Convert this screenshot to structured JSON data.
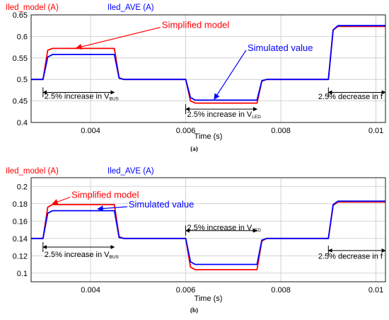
{
  "colors": {
    "model": "#ff0000",
    "average": "#0000ff",
    "annotation": "#000000"
  },
  "chart_data": [
    {
      "type": "line",
      "caption": "(a)",
      "legend": [
        "Iled_model (A)",
        "Iled_AVE (A)"
      ],
      "legend_placement": "top-left",
      "xlabel": "Time (s)",
      "ylabel": "",
      "xlim": [
        0.00275,
        0.0102
      ],
      "ylim": [
        0.4,
        0.65
      ],
      "xticks": [
        0.004,
        0.006,
        0.008,
        0.01
      ],
      "xtick_labels": [
        "0.004",
        "0.006",
        "0.008",
        "0.01"
      ],
      "yticks": [
        0.4,
        0.45,
        0.5,
        0.55,
        0.6,
        0.65
      ],
      "ytick_labels": [
        "0.4",
        "0.45",
        "0.5",
        "0.55",
        "0.6",
        "0.65"
      ],
      "grid": true,
      "series": [
        {
          "name": "Iled_model (A)",
          "x": [
            0.00275,
            0.003,
            0.0031,
            0.0032,
            0.0045,
            0.0046,
            0.0047,
            0.006,
            0.0061,
            0.0062,
            0.0075,
            0.0076,
            0.0077,
            0.009,
            0.0091,
            0.0092,
            0.0102
          ],
          "y": [
            0.5,
            0.5,
            0.568,
            0.572,
            0.572,
            0.504,
            0.5,
            0.5,
            0.45,
            0.445,
            0.445,
            0.496,
            0.5,
            0.5,
            0.615,
            0.623,
            0.623
          ]
        },
        {
          "name": "Iled_AVE (A)",
          "x": [
            0.00275,
            0.003,
            0.0031,
            0.0032,
            0.0045,
            0.0046,
            0.0047,
            0.006,
            0.0061,
            0.0062,
            0.0075,
            0.0076,
            0.0077,
            0.009,
            0.0091,
            0.0092,
            0.0102
          ],
          "y": [
            0.5,
            0.5,
            0.552,
            0.558,
            0.558,
            0.503,
            0.5,
            0.5,
            0.458,
            0.452,
            0.452,
            0.497,
            0.5,
            0.5,
            0.615,
            0.625,
            0.625
          ]
        }
      ],
      "annotations": [
        {
          "text": "Simplified model",
          "color": "#ff0000",
          "x": 0.0055,
          "y": 0.626,
          "arrow_to": [
            0.0037,
            0.573
          ]
        },
        {
          "text": "Simulated value",
          "color": "#0000ff",
          "x": 0.0073,
          "y": 0.573,
          "arrow_to": [
            0.0066,
            0.454
          ]
        },
        {
          "text": "2.5% increase in V",
          "sub": "BUS",
          "x": 0.003,
          "y": 0.462,
          "span": [
            0.003,
            0.0045
          ],
          "y_line": 0.47
        },
        {
          "text": "2.5% increase in V",
          "sub": "LED",
          "x": 0.006,
          "y": 0.42,
          "span": [
            0.006,
            0.0075
          ],
          "y_line": 0.431
        },
        {
          "text": "2.5% decrease in f",
          "x": 0.009,
          "y": 0.461,
          "span": [
            0.009,
            0.0102
          ],
          "y_line": 0.47
        }
      ]
    },
    {
      "type": "line",
      "caption": "(b)",
      "legend": [
        "Iled_model (A)",
        "Iled_AVE (A)"
      ],
      "legend_placement": "top-left",
      "xlabel": "Time (s)",
      "ylabel": "",
      "xlim": [
        0.00275,
        0.0102
      ],
      "ylim": [
        0.09,
        0.21
      ],
      "xticks": [
        0.004,
        0.006,
        0.008,
        0.01
      ],
      "xtick_labels": [
        "0.004",
        "0.006",
        "0.008",
        "0.01"
      ],
      "yticks": [
        0.1,
        0.12,
        0.14,
        0.16,
        0.18,
        0.2
      ],
      "ytick_labels": [
        "0.1",
        "0.12",
        "0.14",
        "0.16",
        "0.18",
        "0.2"
      ],
      "grid": true,
      "series": [
        {
          "name": "Iled_model (A)",
          "x": [
            0.00275,
            0.003,
            0.0031,
            0.0032,
            0.0045,
            0.0046,
            0.0047,
            0.006,
            0.0061,
            0.0062,
            0.0075,
            0.0076,
            0.0077,
            0.009,
            0.0091,
            0.0092,
            0.0102
          ],
          "y": [
            0.14,
            0.14,
            0.176,
            0.179,
            0.179,
            0.142,
            0.14,
            0.14,
            0.107,
            0.104,
            0.104,
            0.137,
            0.14,
            0.14,
            0.178,
            0.182,
            0.182
          ]
        },
        {
          "name": "Iled_AVE (A)",
          "x": [
            0.00275,
            0.003,
            0.0031,
            0.0032,
            0.0045,
            0.0046,
            0.0047,
            0.006,
            0.0061,
            0.0062,
            0.0075,
            0.0076,
            0.0077,
            0.009,
            0.0091,
            0.0092,
            0.0102
          ],
          "y": [
            0.14,
            0.14,
            0.169,
            0.172,
            0.172,
            0.141,
            0.14,
            0.14,
            0.113,
            0.11,
            0.11,
            0.138,
            0.14,
            0.14,
            0.179,
            0.183,
            0.183
          ]
        }
      ],
      "annotations": [
        {
          "text": "Simplified model",
          "color": "#ff0000",
          "x": 0.0036,
          "y": 0.19,
          "arrow_to": [
            0.0032,
            0.18
          ]
        },
        {
          "text": "Simulated value",
          "color": "#0000ff",
          "x": 0.0048,
          "y": 0.179,
          "arrow_to": [
            0.00415,
            0.174
          ]
        },
        {
          "text": "2.5% increase in V",
          "sub": "BUS",
          "x": 0.003,
          "y": 0.122,
          "span": [
            0.003,
            0.0045
          ],
          "y_line": 0.13
        },
        {
          "text": "2.5% increase in V",
          "sub": "LED",
          "x": 0.006,
          "y": 0.153,
          "span": [
            0.006,
            0.0075
          ],
          "y_line": 0.149
        },
        {
          "text": "2.5% decrease in f",
          "x": 0.009,
          "y": 0.12,
          "span": [
            0.009,
            0.0102
          ],
          "y_line": 0.126
        }
      ]
    }
  ]
}
